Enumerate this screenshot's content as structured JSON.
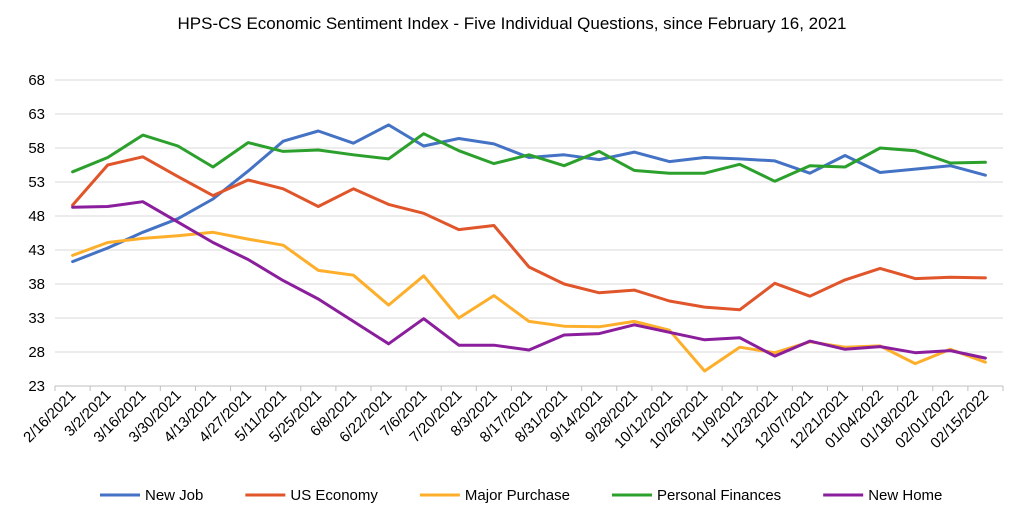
{
  "chart_data": {
    "type": "line",
    "title": "HPS-CS Economic Sentiment Index - Five Individual Questions, since February 16, 2021",
    "xlabel": "",
    "ylabel": "",
    "ylim": [
      23,
      68
    ],
    "yticks": [
      23,
      28,
      33,
      38,
      43,
      48,
      53,
      58,
      63,
      68
    ],
    "grid": "horizontal",
    "legend_position": "bottom",
    "categories": [
      "2/16/2021",
      "3/2/2021",
      "3/16/2021",
      "3/30/2021",
      "4/13/2021",
      "4/27/2021",
      "5/11/2021",
      "5/25/2021",
      "6/8/2021",
      "6/22/2021",
      "7/6/2021",
      "7/20/2021",
      "8/3/2021",
      "8/17/2021",
      "8/31/2021",
      "9/14/2021",
      "9/28/2021",
      "10/12/2021",
      "10/26/2021",
      "11/9/2021",
      "11/23/2021",
      "12/07/2021",
      "12/21/2021",
      "01/04/2022",
      "01/18/2022",
      "02/01/2022",
      "02/15/2022"
    ],
    "series": [
      {
        "name": "New Job",
        "color": "#4472C4",
        "values": [
          41.3,
          43.3,
          45.6,
          47.6,
          50.5,
          54.6,
          59.0,
          60.5,
          58.7,
          61.4,
          58.3,
          59.4,
          58.6,
          56.6,
          57.0,
          56.3,
          57.4,
          56.0,
          56.6,
          56.4,
          56.1,
          54.3,
          56.9,
          54.4,
          54.9,
          55.4,
          54.0
        ]
      },
      {
        "name": "US Economy",
        "color": "#E0552A",
        "values": [
          49.6,
          55.5,
          56.7,
          53.8,
          51.0,
          53.3,
          52.0,
          49.4,
          52.0,
          49.7,
          48.4,
          46.0,
          46.6,
          40.5,
          38.0,
          36.7,
          37.1,
          35.5,
          34.6,
          34.2,
          38.1,
          36.2,
          38.6,
          40.3,
          38.8,
          39.0,
          38.9
        ]
      },
      {
        "name": "Major Purchase",
        "color": "#FDAF2B",
        "values": [
          42.2,
          44.1,
          44.7,
          45.1,
          45.6,
          44.6,
          43.7,
          40.0,
          39.3,
          34.9,
          39.2,
          33.0,
          36.3,
          32.5,
          31.8,
          31.7,
          32.5,
          31.2,
          25.2,
          28.7,
          27.9,
          29.5,
          28.7,
          28.9,
          26.3,
          28.4,
          26.5
        ]
      },
      {
        "name": "Personal Finances",
        "color": "#2CA02C",
        "values": [
          54.5,
          56.6,
          59.9,
          58.3,
          55.2,
          58.8,
          57.5,
          57.7,
          57.0,
          56.4,
          60.1,
          57.6,
          55.7,
          57.0,
          55.4,
          57.5,
          54.7,
          54.3,
          54.3,
          55.6,
          53.1,
          55.4,
          55.2,
          58.0,
          57.6,
          55.8,
          55.9
        ]
      },
      {
        "name": "New Home",
        "color": "#8B1E9C",
        "values": [
          49.3,
          49.4,
          50.1,
          47.1,
          44.1,
          41.6,
          38.5,
          35.8,
          32.5,
          29.2,
          32.9,
          29.0,
          29.0,
          28.3,
          30.5,
          30.7,
          32.0,
          30.9,
          29.8,
          30.1,
          27.4,
          29.6,
          28.4,
          28.8,
          27.9,
          28.2,
          27.1
        ]
      }
    ]
  }
}
